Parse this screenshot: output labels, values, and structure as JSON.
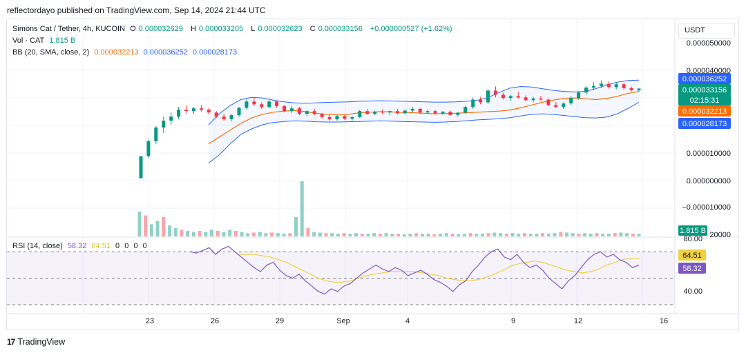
{
  "header": {
    "published": "reflectordayo published on TradingView.com, Sep 14, 2024 21:44 UTC"
  },
  "legend": {
    "symbol": "Simons Cat / Tether, 4h, KUCOIN",
    "open_key": "O",
    "open": "0.000032629",
    "high_key": "H",
    "high": "0.000033205",
    "low_key": "L",
    "low": "0.000032623",
    "close_key": "C",
    "close": "0.000033156",
    "change": "+0.000000527 (+1.62%)",
    "vol_label": "Vol · CAT",
    "vol_value": "1.815 B",
    "bb_label": "BB (20, SMA, close, 2)",
    "bb_basis": "0.000032213",
    "bb_upper": "0.000036252",
    "bb_lower": "0.000028173",
    "rsi_label": "RSI (14, close)",
    "rsi_value": "58.32",
    "rsi_ma": "64.51",
    "rsi_extra": [
      "0",
      "0",
      "0",
      "0"
    ]
  },
  "currency_button": "USDT",
  "price_axis": {
    "ticks": [
      "0.000050000",
      "0.000040000",
      "0.000010000",
      "0.000000000",
      "−0.000010000",
      "20000"
    ],
    "badges": {
      "upper": "0.000036252",
      "close": "0.000033156",
      "countdown": "02:15:31",
      "basis": "0.000032213",
      "lower": "0.000028173",
      "volume": "1.815 B"
    }
  },
  "rsi_axis": {
    "ticks": [
      "80.00",
      "40.00"
    ],
    "badges": {
      "ma": "64.51",
      "rsi": "58.32"
    }
  },
  "time_axis": {
    "labels": [
      "23",
      "26",
      "29",
      "Sep",
      "4",
      "9",
      "12",
      "16"
    ]
  },
  "footer": {
    "brand": "TradingView",
    "logo_text": "17"
  },
  "colors": {
    "up": "#089981",
    "down": "#f23645",
    "bb_band": "#2962ff",
    "bb_basis": "#ff6d00",
    "rsi": "#7e57c2",
    "rsi_ma": "#f0d040",
    "rsi_fill": "#7e57c2"
  },
  "chart_data": {
    "type": "candlestick",
    "title": "Simons Cat / Tether, 4h, KUCOIN",
    "y_unit": "USDT",
    "price_range": [
      -1e-05,
      5e-05
    ],
    "candles_ohlc": [
      [
        5e-07,
        8.5e-06,
        3e-07,
        8.5e-06
      ],
      [
        8.5e-06,
        1.45e-05,
        8e-06,
        1.4e-05
      ],
      [
        1.4e-05,
        1.95e-05,
        1.3e-05,
        1.9e-05
      ],
      [
        1.9e-05,
        2.3e-05,
        1.7e-05,
        2.15e-05
      ],
      [
        2.15e-05,
        2.45e-05,
        2e-05,
        2.3e-05
      ],
      [
        2.3e-05,
        2.65e-05,
        2.2e-05,
        2.55e-05
      ],
      [
        2.55e-05,
        2.7e-05,
        2.4e-05,
        2.5e-05
      ],
      [
        2.5e-05,
        2.65e-05,
        2.4e-05,
        2.6e-05
      ],
      [
        2.6e-05,
        2.72e-05,
        2.48e-05,
        2.55e-05
      ],
      [
        2.55e-05,
        2.62e-05,
        2.38e-05,
        2.45e-05
      ],
      [
        2.45e-05,
        2.5e-05,
        2.25e-05,
        2.3e-05
      ],
      [
        2.3e-05,
        2.4e-05,
        2.15e-05,
        2.2e-05
      ],
      [
        2.2e-05,
        2.38e-05,
        2.12e-05,
        2.35e-05
      ],
      [
        2.35e-05,
        2.65e-05,
        2.3e-05,
        2.62e-05
      ],
      [
        2.62e-05,
        2.92e-05,
        2.55e-05,
        2.85e-05
      ],
      [
        2.85e-05,
        2.98e-05,
        2.68e-05,
        2.75e-05
      ],
      [
        2.75e-05,
        2.82e-05,
        2.58e-05,
        2.65e-05
      ],
      [
        2.65e-05,
        2.9e-05,
        2.6e-05,
        2.85e-05
      ],
      [
        2.85e-05,
        2.88e-05,
        2.62e-05,
        2.68e-05
      ],
      [
        2.68e-05,
        2.72e-05,
        2.45e-05,
        2.5e-05
      ],
      [
        2.5e-05,
        2.68e-05,
        2.42e-05,
        2.6e-05
      ],
      [
        2.6e-05,
        2.65e-05,
        2.35e-05,
        2.4e-05
      ],
      [
        2.4e-05,
        2.55e-05,
        2.32e-05,
        2.5e-05
      ],
      [
        2.5e-05,
        2.58e-05,
        2.35e-05,
        2.4e-05
      ],
      [
        2.4e-05,
        2.42e-05,
        2.22e-05,
        2.28e-05
      ],
      [
        2.28e-05,
        2.35e-05,
        2.15e-05,
        2.2e-05
      ],
      [
        2.2e-05,
        2.38e-05,
        2.15e-05,
        2.32e-05
      ],
      [
        2.32e-05,
        2.36e-05,
        2.18e-05,
        2.22e-05
      ],
      [
        2.22e-05,
        2.32e-05,
        2.15e-05,
        2.28e-05
      ],
      [
        2.28e-05,
        2.55e-05,
        2.25e-05,
        2.5e-05
      ],
      [
        2.5e-05,
        2.58e-05,
        2.36e-05,
        2.4e-05
      ],
      [
        2.4e-05,
        2.52e-05,
        2.35e-05,
        2.48e-05
      ],
      [
        2.48e-05,
        2.56e-05,
        2.38e-05,
        2.45e-05
      ],
      [
        2.45e-05,
        2.52e-05,
        2.35e-05,
        2.5e-05
      ],
      [
        2.5e-05,
        2.58e-05,
        2.38e-05,
        2.42e-05
      ],
      [
        2.42e-05,
        2.56e-05,
        2.38e-05,
        2.52e-05
      ],
      [
        2.52e-05,
        2.65e-05,
        2.45e-05,
        2.58e-05
      ],
      [
        2.58e-05,
        2.62e-05,
        2.4e-05,
        2.45e-05
      ],
      [
        2.45e-05,
        2.56e-05,
        2.4e-05,
        2.5e-05
      ],
      [
        2.5e-05,
        2.54e-05,
        2.38e-05,
        2.42e-05
      ],
      [
        2.42e-05,
        2.5e-05,
        2.36e-05,
        2.48e-05
      ],
      [
        2.48e-05,
        2.52e-05,
        2.32e-05,
        2.36e-05
      ],
      [
        2.36e-05,
        2.46e-05,
        2.3e-05,
        2.44e-05
      ],
      [
        2.44e-05,
        2.7e-05,
        2.4e-05,
        2.65e-05
      ],
      [
        2.65e-05,
        3e-05,
        2.58e-05,
        2.92e-05
      ],
      [
        2.92e-05,
        3.02e-05,
        2.75e-05,
        2.82e-05
      ],
      [
        2.82e-05,
        3.3e-05,
        2.76e-05,
        3.25e-05
      ],
      [
        3.25e-05,
        3.4e-05,
        3e-05,
        3.1e-05
      ],
      [
        3.1e-05,
        3.18e-05,
        2.92e-05,
        2.98e-05
      ],
      [
        2.98e-05,
        3.1e-05,
        2.88e-05,
        3.05e-05
      ],
      [
        3.05e-05,
        3.2e-05,
        2.95e-05,
        3e-05
      ],
      [
        3e-05,
        3.08e-05,
        2.85e-05,
        2.9e-05
      ],
      [
        2.9e-05,
        3.02e-05,
        2.82e-05,
        2.96e-05
      ],
      [
        2.96e-05,
        3.06e-05,
        2.86e-05,
        2.92e-05
      ],
      [
        2.92e-05,
        2.96e-05,
        2.68e-05,
        2.72e-05
      ],
      [
        2.72e-05,
        2.84e-05,
        2.62e-05,
        2.65e-05
      ],
      [
        2.65e-05,
        2.82e-05,
        2.58e-05,
        2.78e-05
      ],
      [
        2.78e-05,
        3.05e-05,
        2.72e-05,
        2.98e-05
      ],
      [
        2.98e-05,
        3.22e-05,
        2.92e-05,
        3.18e-05
      ],
      [
        3.18e-05,
        3.42e-05,
        3.1e-05,
        3.36e-05
      ],
      [
        3.36e-05,
        3.55e-05,
        3.26e-05,
        3.42e-05
      ],
      [
        3.42e-05,
        3.62e-05,
        3.34e-05,
        3.5e-05
      ],
      [
        3.5e-05,
        3.58e-05,
        3.32e-05,
        3.38e-05
      ],
      [
        3.38e-05,
        3.56e-05,
        3.3e-05,
        3.48e-05
      ],
      [
        3.48e-05,
        3.54e-05,
        3.28e-05,
        3.34e-05
      ],
      [
        3.34e-05,
        3.4e-05,
        3.22e-05,
        3.26e-05
      ],
      [
        3.26e-05,
        3.35e-05,
        3.2e-05,
        3.32e-05
      ]
    ],
    "bollinger": {
      "basis": [
        1.3e-05,
        1.55e-05,
        1.8e-05,
        2.05e-05,
        2.25e-05,
        2.38e-05,
        2.46e-05,
        2.5e-05,
        2.52e-05,
        2.48e-05,
        2.42e-05,
        2.38e-05,
        2.36e-05,
        2.38e-05,
        2.44e-05,
        2.46e-05,
        2.48e-05,
        2.47e-05,
        2.45e-05,
        2.44e-05,
        2.42e-05,
        2.4e-05,
        2.41e-05,
        2.42e-05,
        2.44e-05,
        2.46e-05,
        2.48e-05,
        2.5e-05,
        2.54e-05,
        2.62e-05,
        2.72e-05,
        2.82e-05,
        2.9e-05,
        2.96e-05,
        2.98e-05,
        2.95e-05,
        2.92e-05,
        2.96e-05,
        3.04e-05,
        3.15e-05,
        3.22e-05
      ],
      "upper": [
        2e-05,
        2.4e-05,
        2.7e-05,
        2.92e-05,
        3e-05,
        2.98e-05,
        2.9e-05,
        2.84e-05,
        2.8e-05,
        2.79e-05,
        2.8e-05,
        2.82e-05,
        2.83e-05,
        2.84e-05,
        2.86e-05,
        2.87e-05,
        2.88e-05,
        2.87e-05,
        2.86e-05,
        2.85e-05,
        2.84e-05,
        2.83e-05,
        2.83e-05,
        2.84e-05,
        2.86e-05,
        2.9e-05,
        3e-05,
        3.18e-05,
        3.34e-05,
        3.4e-05,
        3.38e-05,
        3.32e-05,
        3.26e-05,
        3.22e-05,
        3.2e-05,
        3.22e-05,
        3.32e-05,
        3.46e-05,
        3.56e-05,
        3.62e-05,
        3.63e-05
      ],
      "lower": [
        6e-06,
        9e-06,
        1.3e-05,
        1.65e-05,
        1.85e-05,
        2e-05,
        2.08e-05,
        2.12e-05,
        2.14e-05,
        2.13e-05,
        2.11e-05,
        2.1e-05,
        2.1e-05,
        2.11e-05,
        2.12e-05,
        2.13e-05,
        2.14e-05,
        2.13e-05,
        2.12e-05,
        2.11e-05,
        2.1e-05,
        2.09e-05,
        2.1e-05,
        2.12e-05,
        2.15e-05,
        2.18e-05,
        2.2e-05,
        2.22e-05,
        2.26e-05,
        2.32e-05,
        2.38e-05,
        2.4e-05,
        2.38e-05,
        2.34e-05,
        2.3e-05,
        2.26e-05,
        2.25e-05,
        2.28e-05,
        2.4e-05,
        2.6e-05,
        2.82e-05
      ]
    },
    "volume_relative": [
      0.45,
      0.38,
      0.22,
      0.28,
      0.35,
      0.2,
      0.15,
      0.12,
      0.1,
      0.08,
      0.1,
      0.08,
      0.12,
      0.1,
      0.08,
      0.12,
      0.1,
      0.08,
      0.06,
      0.07,
      0.08,
      0.06,
      0.07,
      0.06,
      0.05,
      0.06,
      0.35,
      1.0,
      0.15,
      0.08,
      0.07,
      0.06,
      0.06,
      0.05,
      0.06,
      0.05,
      0.06,
      0.05,
      0.05,
      0.06,
      0.05,
      0.06,
      0.05,
      0.05,
      0.04,
      0.05,
      0.06,
      0.05,
      0.05,
      0.04,
      0.05,
      0.06,
      0.05,
      0.04,
      0.05,
      0.06,
      0.05,
      0.05,
      0.06,
      0.07,
      0.06,
      0.05,
      0.06,
      0.05,
      0.06,
      0.05,
      0.05,
      0.06,
      0.05,
      0.06,
      0.08,
      0.07,
      0.06,
      0.05,
      0.06,
      0.05,
      0.06,
      0.05,
      0.05,
      0.06,
      0.07,
      0.06,
      0.05,
      0.05
    ],
    "rsi": {
      "range": [
        30,
        80
      ],
      "upper_band": 70,
      "lower_band": 30,
      "values": [
        70,
        69,
        71,
        73,
        68,
        72,
        74,
        70,
        66,
        62,
        58,
        55,
        60,
        62,
        56,
        52,
        50,
        53,
        48,
        44,
        40,
        38,
        42,
        40,
        44,
        46,
        50,
        54,
        57,
        60,
        57,
        55,
        58,
        56,
        52,
        54,
        56,
        53,
        49,
        47,
        44,
        40,
        45,
        48,
        55,
        60,
        66,
        70,
        72,
        66,
        64,
        68,
        62,
        58,
        60,
        56,
        50,
        46,
        42,
        48,
        52,
        58,
        64,
        68,
        70,
        66,
        68,
        64,
        62,
        58,
        60
      ],
      "ma": [
        68,
        68,
        68,
        67,
        66,
        64,
        62,
        59,
        56,
        53,
        50,
        48,
        47,
        47,
        48,
        50,
        52,
        53,
        54,
        55,
        55,
        55,
        55,
        54,
        53,
        52,
        50,
        49,
        48,
        48,
        49,
        51,
        53,
        56,
        59,
        61,
        62,
        63,
        62,
        60,
        58,
        56,
        55,
        54,
        55,
        57,
        60,
        62,
        64,
        65,
        65
      ]
    },
    "x_labels": [
      "23",
      "26",
      "29",
      "Sep",
      "4",
      "9",
      "12",
      "16"
    ]
  }
}
